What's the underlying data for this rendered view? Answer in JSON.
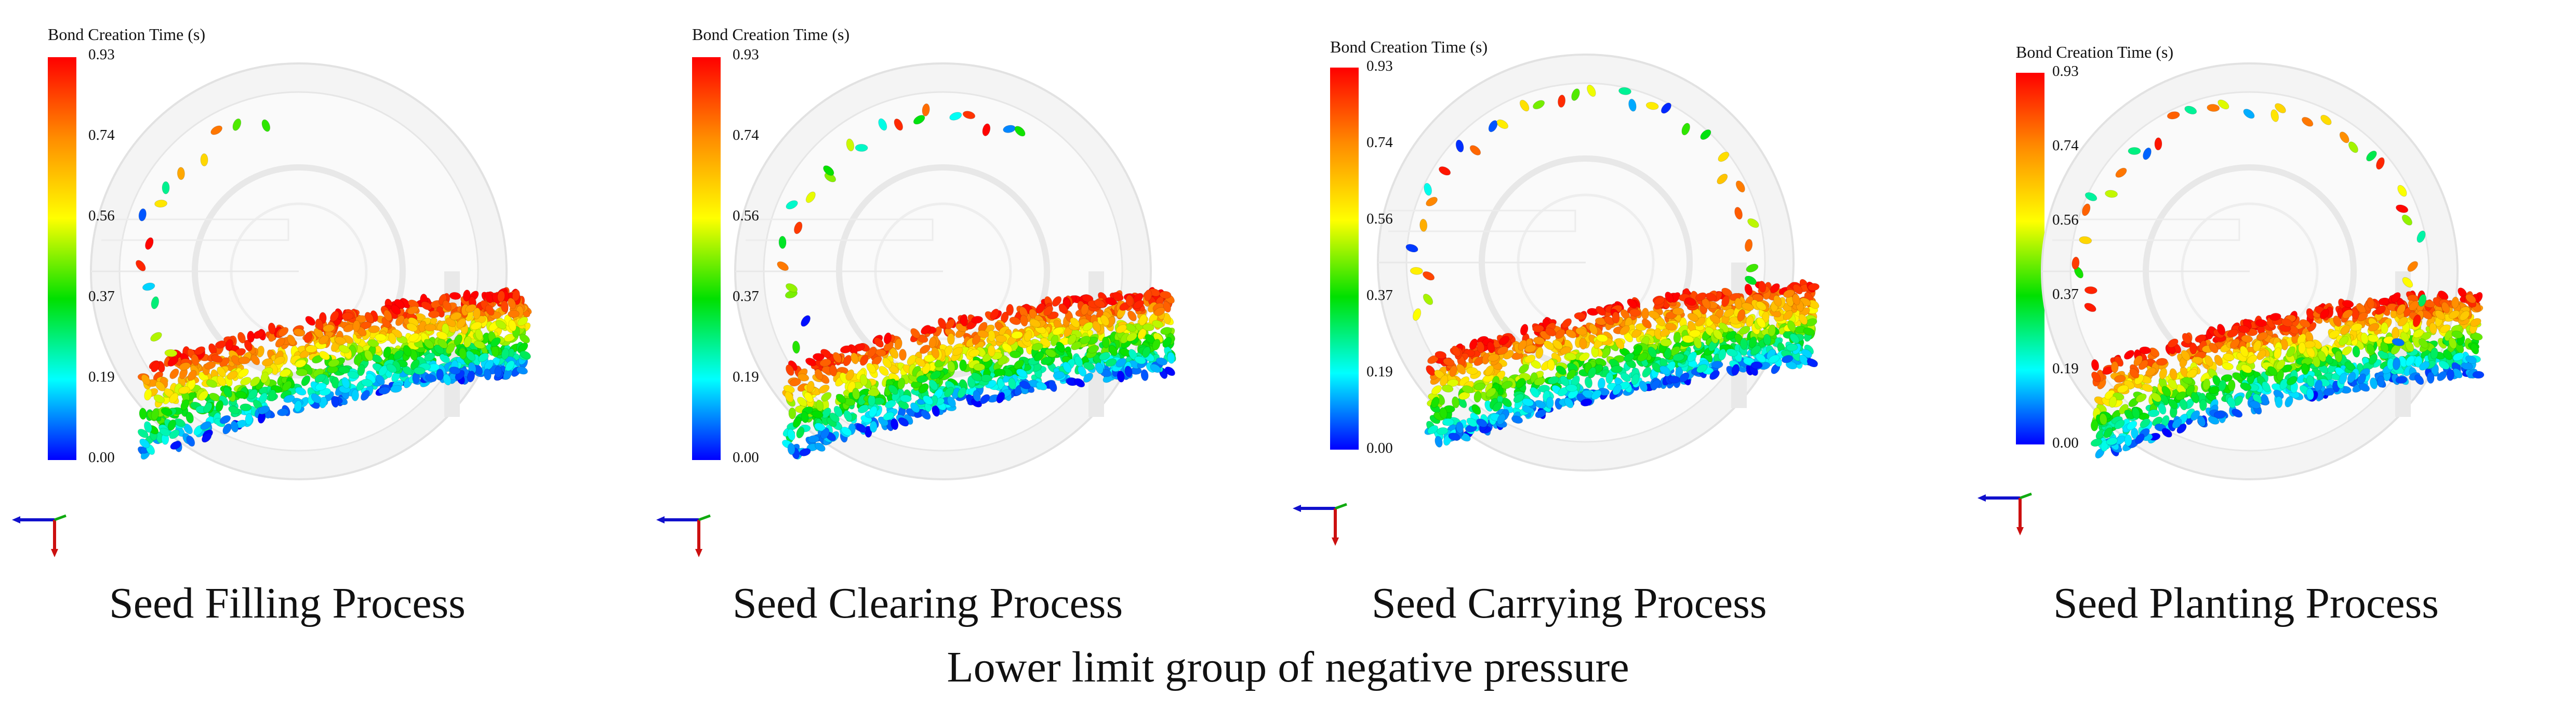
{
  "colorbar": {
    "title": "Bond Creation Time (s)",
    "ticks": [
      "0.93",
      "0.74",
      "0.56",
      "0.37",
      "0.19",
      "0.00"
    ],
    "colors": [
      "#ff0000",
      "#ff8c00",
      "#ffff00",
      "#00e000",
      "#00ffff",
      "#0000ff"
    ]
  },
  "panels": [
    {
      "caption": "Seed Filling Process"
    },
    {
      "caption": "Seed Clearing Process"
    },
    {
      "caption": "Seed Carrying Process"
    },
    {
      "caption": "Seed Planting Process"
    }
  ],
  "group_caption": "Lower limit group of negative pressure",
  "icons": {
    "axis_triad": "axis-triad-icon",
    "seed_disk": "seed-metering-disk"
  }
}
